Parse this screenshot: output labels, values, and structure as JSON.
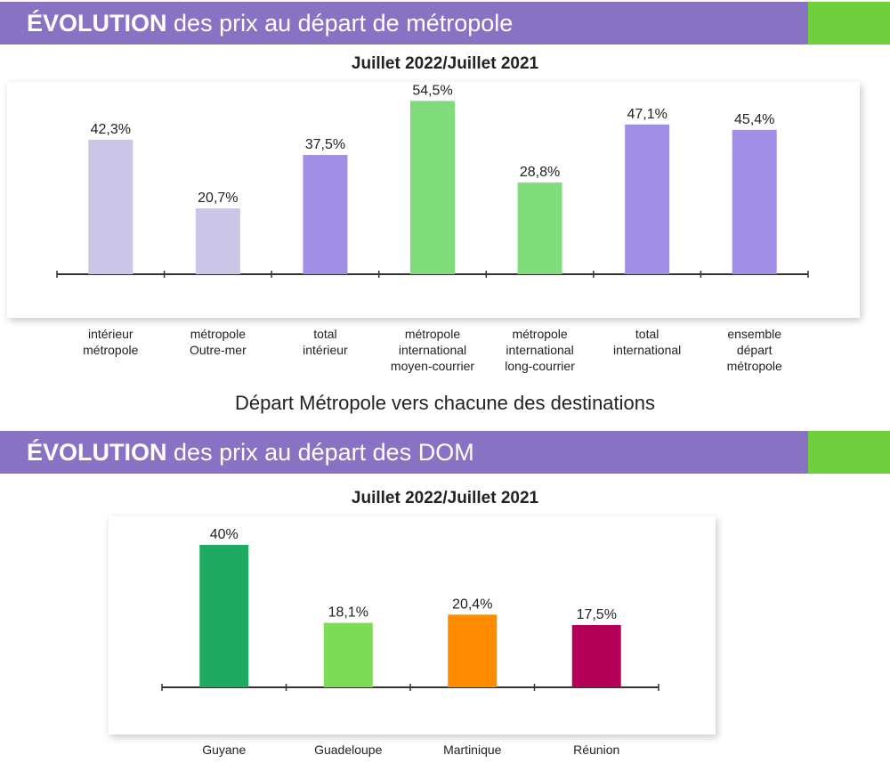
{
  "section1": {
    "title_bold": "ÉVOLUTION",
    "title_rest": "des prix au départ de métropole",
    "subtitle": "Juillet 2022/Juillet 2021",
    "caption": "Départ Métropole vers chacune des destinations"
  },
  "section2": {
    "title_bold": "ÉVOLUTION",
    "title_rest": "des prix au départ des DOM",
    "subtitle": "Juillet 2022/Juillet 2021"
  },
  "colors": {
    "banner": "#8772c4",
    "banner_accent": "#6fcf3c"
  },
  "chart_data": [
    {
      "type": "bar",
      "title": "Juillet 2022/Juillet 2021",
      "categories": [
        [
          "intérieur",
          "métropole"
        ],
        [
          "métropole",
          "Outre-mer"
        ],
        [
          "total",
          "intérieur"
        ],
        [
          "métropole",
          "international",
          "moyen-courrier"
        ],
        [
          "métropole",
          "international",
          "long-courrier"
        ],
        [
          "total",
          "international"
        ],
        [
          "ensemble",
          "départ",
          "métropole"
        ]
      ],
      "values": [
        42.3,
        20.7,
        37.5,
        54.5,
        28.8,
        47.1,
        45.4
      ],
      "value_labels": [
        "42,3%",
        "20,7%",
        "37,5%",
        "54,5%",
        "28,8%",
        "47,1%",
        "45,4%"
      ],
      "colors": [
        "#cbc5e8",
        "#cbc5e8",
        "#a08de6",
        "#7fdc7a",
        "#7fdc7a",
        "#a08de6",
        "#a08de6"
      ],
      "ylim": [
        0,
        56
      ]
    },
    {
      "type": "bar",
      "title": "Juillet 2022/Juillet 2021",
      "categories": [
        "Guyane",
        "Guadeloupe",
        "Martinique",
        "Réunion"
      ],
      "values": [
        40,
        18.1,
        20.4,
        17.5
      ],
      "value_labels": [
        "40%",
        "18,1%",
        "20,4%",
        "17,5%"
      ],
      "colors": [
        "#1faa62",
        "#7ddc55",
        "#ff8c00",
        "#b5005a"
      ],
      "ylim": [
        0,
        42
      ]
    }
  ]
}
